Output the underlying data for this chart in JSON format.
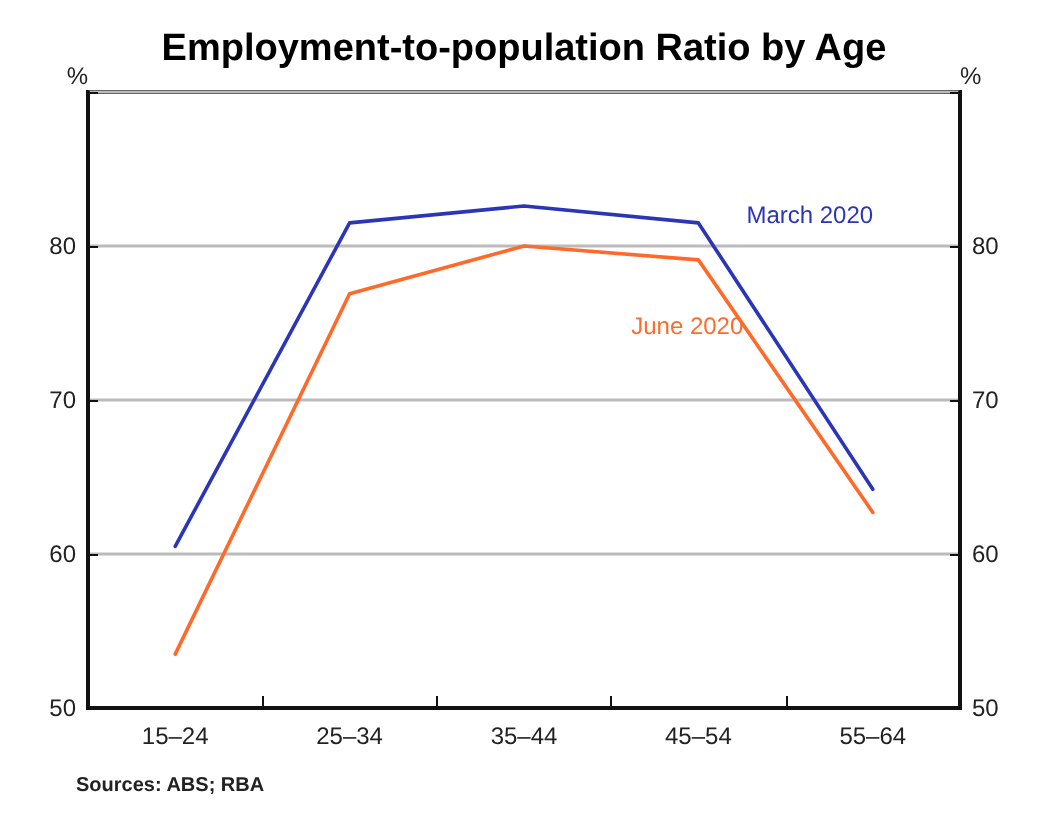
{
  "chart_data": {
    "type": "line",
    "title": "Employment-to-population Ratio by Age",
    "ylabel": "%",
    "y2label": "%",
    "categories": [
      "15–24",
      "25–34",
      "35–44",
      "45–54",
      "55–64"
    ],
    "series": [
      {
        "name": "March 2020",
        "color": "#2b35b8",
        "values": [
          60.5,
          81.5,
          82.6,
          81.5,
          64.2
        ]
      },
      {
        "name": "June 2020",
        "color": "#ff6a2a",
        "values": [
          53.5,
          76.9,
          80.0,
          79.1,
          62.7
        ]
      }
    ],
    "ylim": [
      50,
      90
    ],
    "yticks": [
      50,
      60,
      70,
      80,
      {
        "value": 90,
        "label": null
      }
    ],
    "y2lim": [
      50,
      90
    ],
    "y2ticks": [
      50,
      60,
      70,
      80,
      {
        "value": 90,
        "label": null
      }
    ],
    "grid": "y",
    "legend": false,
    "marker": "none",
    "line_style": "solid",
    "annotations": [
      "Sources: ABS; RBA"
    ]
  }
}
